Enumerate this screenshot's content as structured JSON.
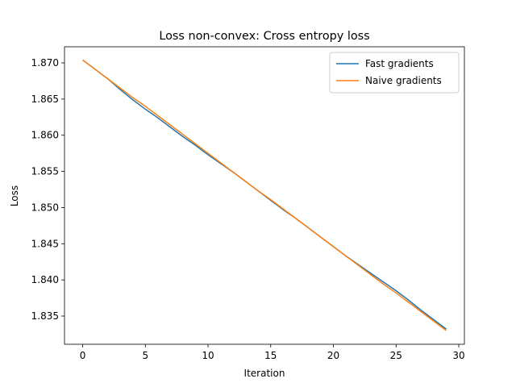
{
  "chart_data": {
    "type": "line",
    "title": "Loss non-convex: Cross entropy loss",
    "xlabel": "Iteration",
    "ylabel": "Loss",
    "x": [
      0,
      1,
      2,
      3,
      4,
      5,
      6,
      7,
      8,
      9,
      10,
      11,
      12,
      13,
      14,
      15,
      16,
      17,
      18,
      19,
      20,
      21,
      22,
      23,
      24,
      25,
      26,
      27,
      28,
      29
    ],
    "series": [
      {
        "name": "Fast gradients",
        "color": "#1f77b4",
        "values": [
          1.8704,
          1.8691,
          1.8678,
          1.8663,
          1.8649,
          1.8636,
          1.8624,
          1.8611,
          1.8598,
          1.8586,
          1.8573,
          1.8561,
          1.8549,
          1.8536,
          1.8523,
          1.851,
          1.8497,
          1.8485,
          1.8472,
          1.8459,
          1.8446,
          1.8433,
          1.8421,
          1.8409,
          1.8397,
          1.8385,
          1.8372,
          1.8358,
          1.8345,
          1.8332
        ]
      },
      {
        "name": "Naive gradients",
        "color": "#ff7f0e",
        "values": [
          1.8704,
          1.8691,
          1.8678,
          1.8665,
          1.8652,
          1.864,
          1.8627,
          1.8614,
          1.8601,
          1.8588,
          1.8575,
          1.8562,
          1.8549,
          1.8536,
          1.8523,
          1.8511,
          1.8498,
          1.8485,
          1.8472,
          1.8459,
          1.8446,
          1.8433,
          1.842,
          1.8407,
          1.8394,
          1.8382,
          1.8369,
          1.8356,
          1.8343,
          1.833
        ]
      }
    ],
    "xlim": [
      -1.45,
      30.45
    ],
    "xticks": [
      0,
      5,
      10,
      15,
      20,
      25,
      30
    ],
    "ylim": [
      1.8311,
      1.87223
    ],
    "yticks": [
      {
        "value": 1.835,
        "label": "1.835"
      },
      {
        "value": 1.84,
        "label": "1.840"
      },
      {
        "value": 1.845,
        "label": "1.845"
      },
      {
        "value": 1.85,
        "label": "1.850"
      },
      {
        "value": 1.855,
        "label": "1.855"
      },
      {
        "value": 1.86,
        "label": "1.860"
      },
      {
        "value": 1.865,
        "label": "1.865"
      },
      {
        "value": 1.87,
        "label": "1.870"
      }
    ],
    "legend": "upper right"
  }
}
